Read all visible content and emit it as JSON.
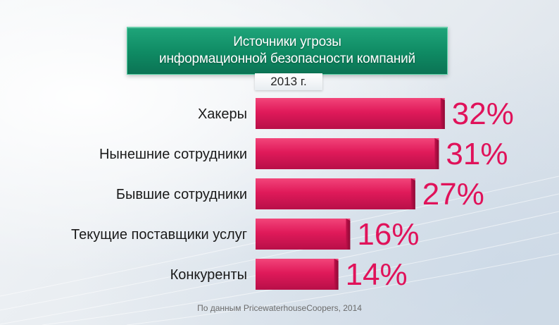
{
  "title": {
    "line1": "Источники угрозы",
    "line2": "информационной безопасности компаний"
  },
  "year": "2013 г.",
  "source": "По данным PricewaterhouseCoopers, 2014",
  "colors": {
    "title_bg": "#0f8a63",
    "bar": "#e01a5a",
    "value_text": "#e0125a",
    "label_text": "#1a1a1a"
  },
  "chart_data": {
    "type": "bar",
    "orientation": "horizontal",
    "categories": [
      "Хакеры",
      "Нынешние сотрудники",
      "Бывшие сотрудники",
      "Текущие поставщики услуг",
      "Конкуренты"
    ],
    "values": [
      32,
      31,
      27,
      16,
      14
    ],
    "value_labels": [
      "32%",
      "31%",
      "27%",
      "16%",
      "14%"
    ],
    "unit": "%",
    "grid": false,
    "legend": "none"
  }
}
